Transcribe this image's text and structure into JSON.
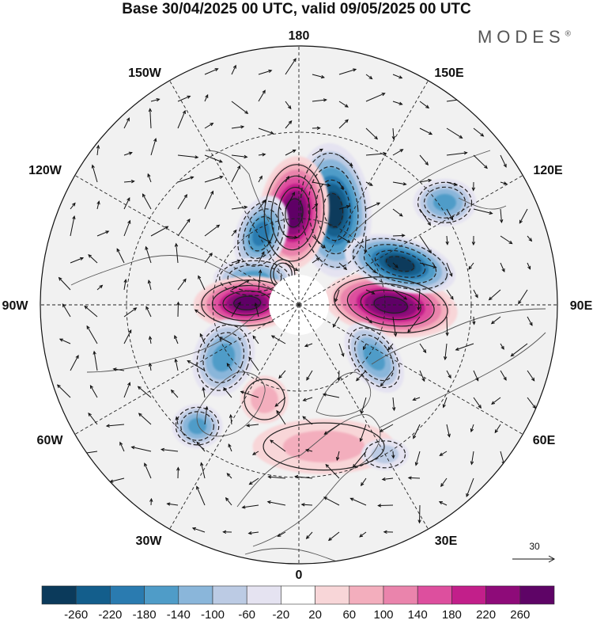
{
  "title": "Base 30/04/2025 00 UTC, valid 09/05/2025 00 UTC",
  "logo": {
    "text": "MODES",
    "mark": "®"
  },
  "longitude_labels": {
    "n180": "180",
    "n150e": "150E",
    "n120e": "120E",
    "n90e": "90E",
    "n60e": "60E",
    "n30e": "30E",
    "n0": "0",
    "n30w": "30W",
    "n60w": "60W",
    "n90w": "90W",
    "n120w": "120W",
    "n150w": "150W"
  },
  "vector_scale": {
    "label": "30"
  },
  "colorbar": {
    "labels": [
      "-260",
      "-220",
      "-180",
      "-140",
      "-100",
      "-60",
      "-20",
      "20",
      "60",
      "100",
      "140",
      "180",
      "220",
      "260"
    ],
    "colors": [
      "#0b3a5b",
      "#135e8c",
      "#2a7bb0",
      "#4f9cc8",
      "#8ab6da",
      "#bccbe4",
      "#e5e3f1",
      "#ffffff",
      "#f8d6d8",
      "#f3aebd",
      "#ea84ac",
      "#dd4f9e",
      "#c21f8a",
      "#8e0b79",
      "#5e0466"
    ]
  },
  "anomalies": [
    {
      "lon": 160,
      "lat": 55,
      "rx": 48,
      "ry": 85,
      "ang": -5,
      "v": -280,
      "name": "anomaly-nw-pacific-low"
    },
    {
      "lon": 183,
      "lat": 58,
      "rx": 44,
      "ry": 72,
      "ang": 5,
      "v": 270,
      "name": "anomaly-bering-high"
    },
    {
      "lon": 208,
      "lat": 62,
      "rx": 32,
      "ry": 50,
      "ang": 20,
      "v": -190,
      "name": "anomaly-alaska-low"
    },
    {
      "lon": 208,
      "lat": 78,
      "rx": 18,
      "ry": 22,
      "ang": 0,
      "v": 130,
      "name": "anomaly-beaufort-high"
    },
    {
      "lon": 239,
      "lat": 72,
      "rx": 52,
      "ry": 26,
      "ang": 0,
      "v": -170,
      "name": "anomaly-canada-low"
    },
    {
      "lon": 268,
      "lat": 72,
      "rx": 68,
      "ry": 34,
      "ang": -2,
      "v": 290,
      "name": "anomaly-hudson-high"
    },
    {
      "lon": 305,
      "lat": 58,
      "rx": 38,
      "ry": 50,
      "ang": 20,
      "v": -170,
      "name": "anomaly-greenland-low"
    },
    {
      "lon": 320,
      "lat": 35,
      "rx": 32,
      "ry": 28,
      "ang": 0,
      "v": -150,
      "name": "anomaly-atlantic-low"
    },
    {
      "lon": 90,
      "lat": 58,
      "rx": 85,
      "ry": 40,
      "ang": 8,
      "v": 300,
      "name": "anomaly-siberia-high"
    },
    {
      "lon": 112,
      "lat": 52,
      "rx": 72,
      "ry": 34,
      "ang": 15,
      "v": -290,
      "name": "anomaly-east-asia-low"
    },
    {
      "lon": 125,
      "lat": 28,
      "rx": 40,
      "ry": 30,
      "ang": 0,
      "v": -140,
      "name": "anomaly-china-low"
    },
    {
      "lon": 55,
      "lat": 58,
      "rx": 30,
      "ry": 50,
      "ang": -35,
      "v": -170,
      "name": "anomaly-ural-low"
    },
    {
      "lon": 10,
      "lat": 40,
      "rx": 90,
      "ry": 35,
      "ang": 0,
      "v": 70,
      "name": "anomaly-europe-weak-high"
    },
    {
      "lon": 340,
      "lat": 55,
      "rx": 30,
      "ry": 30,
      "ang": 0,
      "v": 60,
      "name": "anomaly-iceland-weak-high"
    },
    {
      "lon": 30,
      "lat": 30,
      "rx": 30,
      "ry": 20,
      "ang": 0,
      "v": -60,
      "name": "anomaly-mediterranean-weak-low"
    }
  ]
}
